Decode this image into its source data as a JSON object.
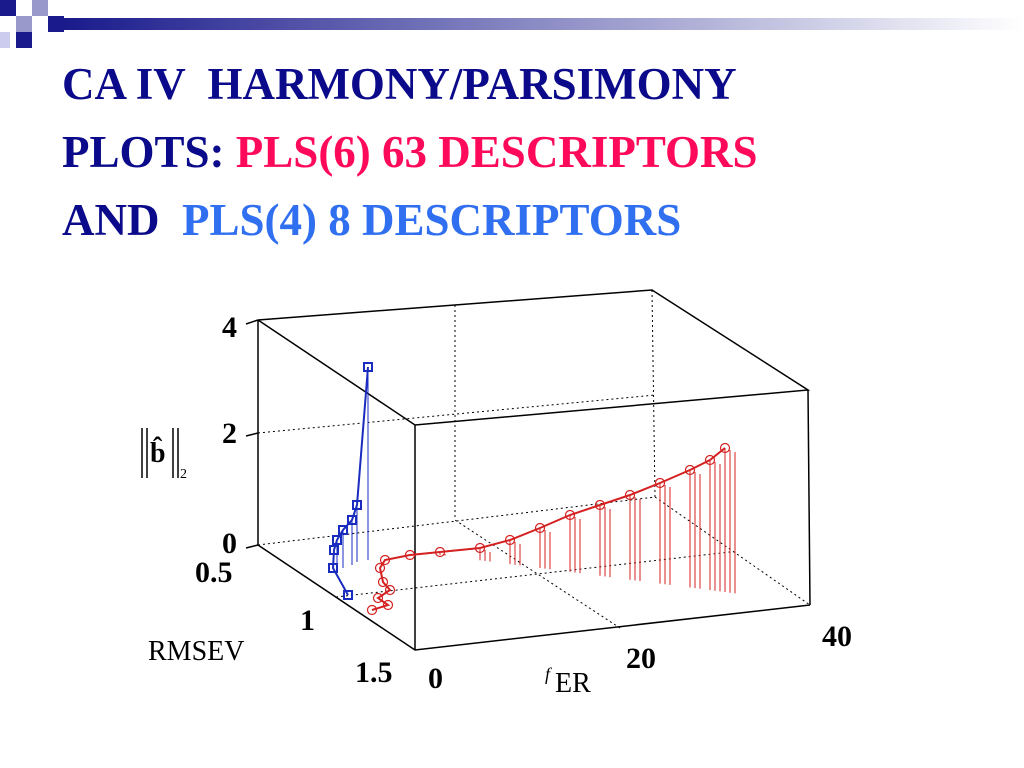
{
  "title": {
    "line1": "CA IV  HARMONY/PARSIMONY",
    "line2_prefix": "PLOTS:",
    "line2_highlight": "PLS(6) 63 DESCRIPTORS",
    "line3_prefix": "AND",
    "line3_highlight": "PLS(4) 8 DESCRIPTORS"
  },
  "plot": {
    "z_label": {
      "symbol": "b̂",
      "subscript": "2"
    },
    "y_label": "RMSEV",
    "x_label": {
      "superscript": "f",
      "text": "ER"
    },
    "z_ticks": [
      "0",
      "2",
      "4"
    ],
    "y_ticks": [
      "0.5",
      "1",
      "1.5"
    ],
    "x_ticks": [
      "0",
      "20",
      "40"
    ]
  }
}
